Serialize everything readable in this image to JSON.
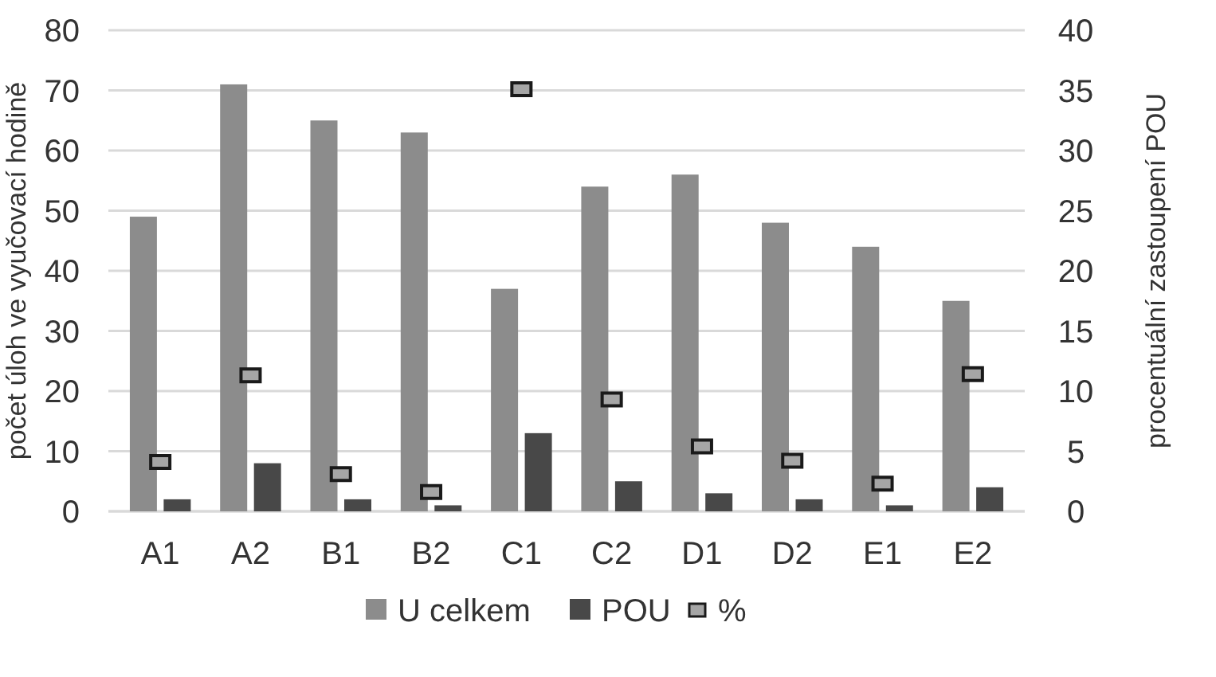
{
  "chart_data": {
    "type": "bar",
    "categories": [
      "A1",
      "A2",
      "B1",
      "B2",
      "C1",
      "C2",
      "D1",
      "D2",
      "E1",
      "E2"
    ],
    "series": [
      {
        "name": "U celkem",
        "color": "#8c8c8c",
        "values": [
          49,
          71,
          65,
          63,
          37,
          54,
          56,
          48,
          44,
          35
        ]
      },
      {
        "name": "POU",
        "color": "#484848",
        "values": [
          2,
          8,
          2,
          1,
          13,
          5,
          3,
          2,
          1,
          4
        ]
      },
      {
        "name": "%",
        "type": "scatter",
        "axis": "y2",
        "marker": "square",
        "color": "#a6a6a6",
        "values": [
          4.1,
          11.3,
          3.1,
          1.6,
          35.1,
          9.3,
          5.4,
          4.2,
          2.3,
          11.4
        ]
      }
    ],
    "ylabel": "počet úloh ve vyučovací hodině",
    "y2label": "procentuální zastoupení POU",
    "ylim": [
      0,
      80
    ],
    "yticks": [
      0,
      10,
      20,
      30,
      40,
      50,
      60,
      70,
      80
    ],
    "y2lim": [
      0,
      40
    ],
    "y2ticks": [
      0,
      5,
      10,
      15,
      20,
      25,
      30,
      35,
      40
    ],
    "grid": "y",
    "legend": "bottom"
  }
}
